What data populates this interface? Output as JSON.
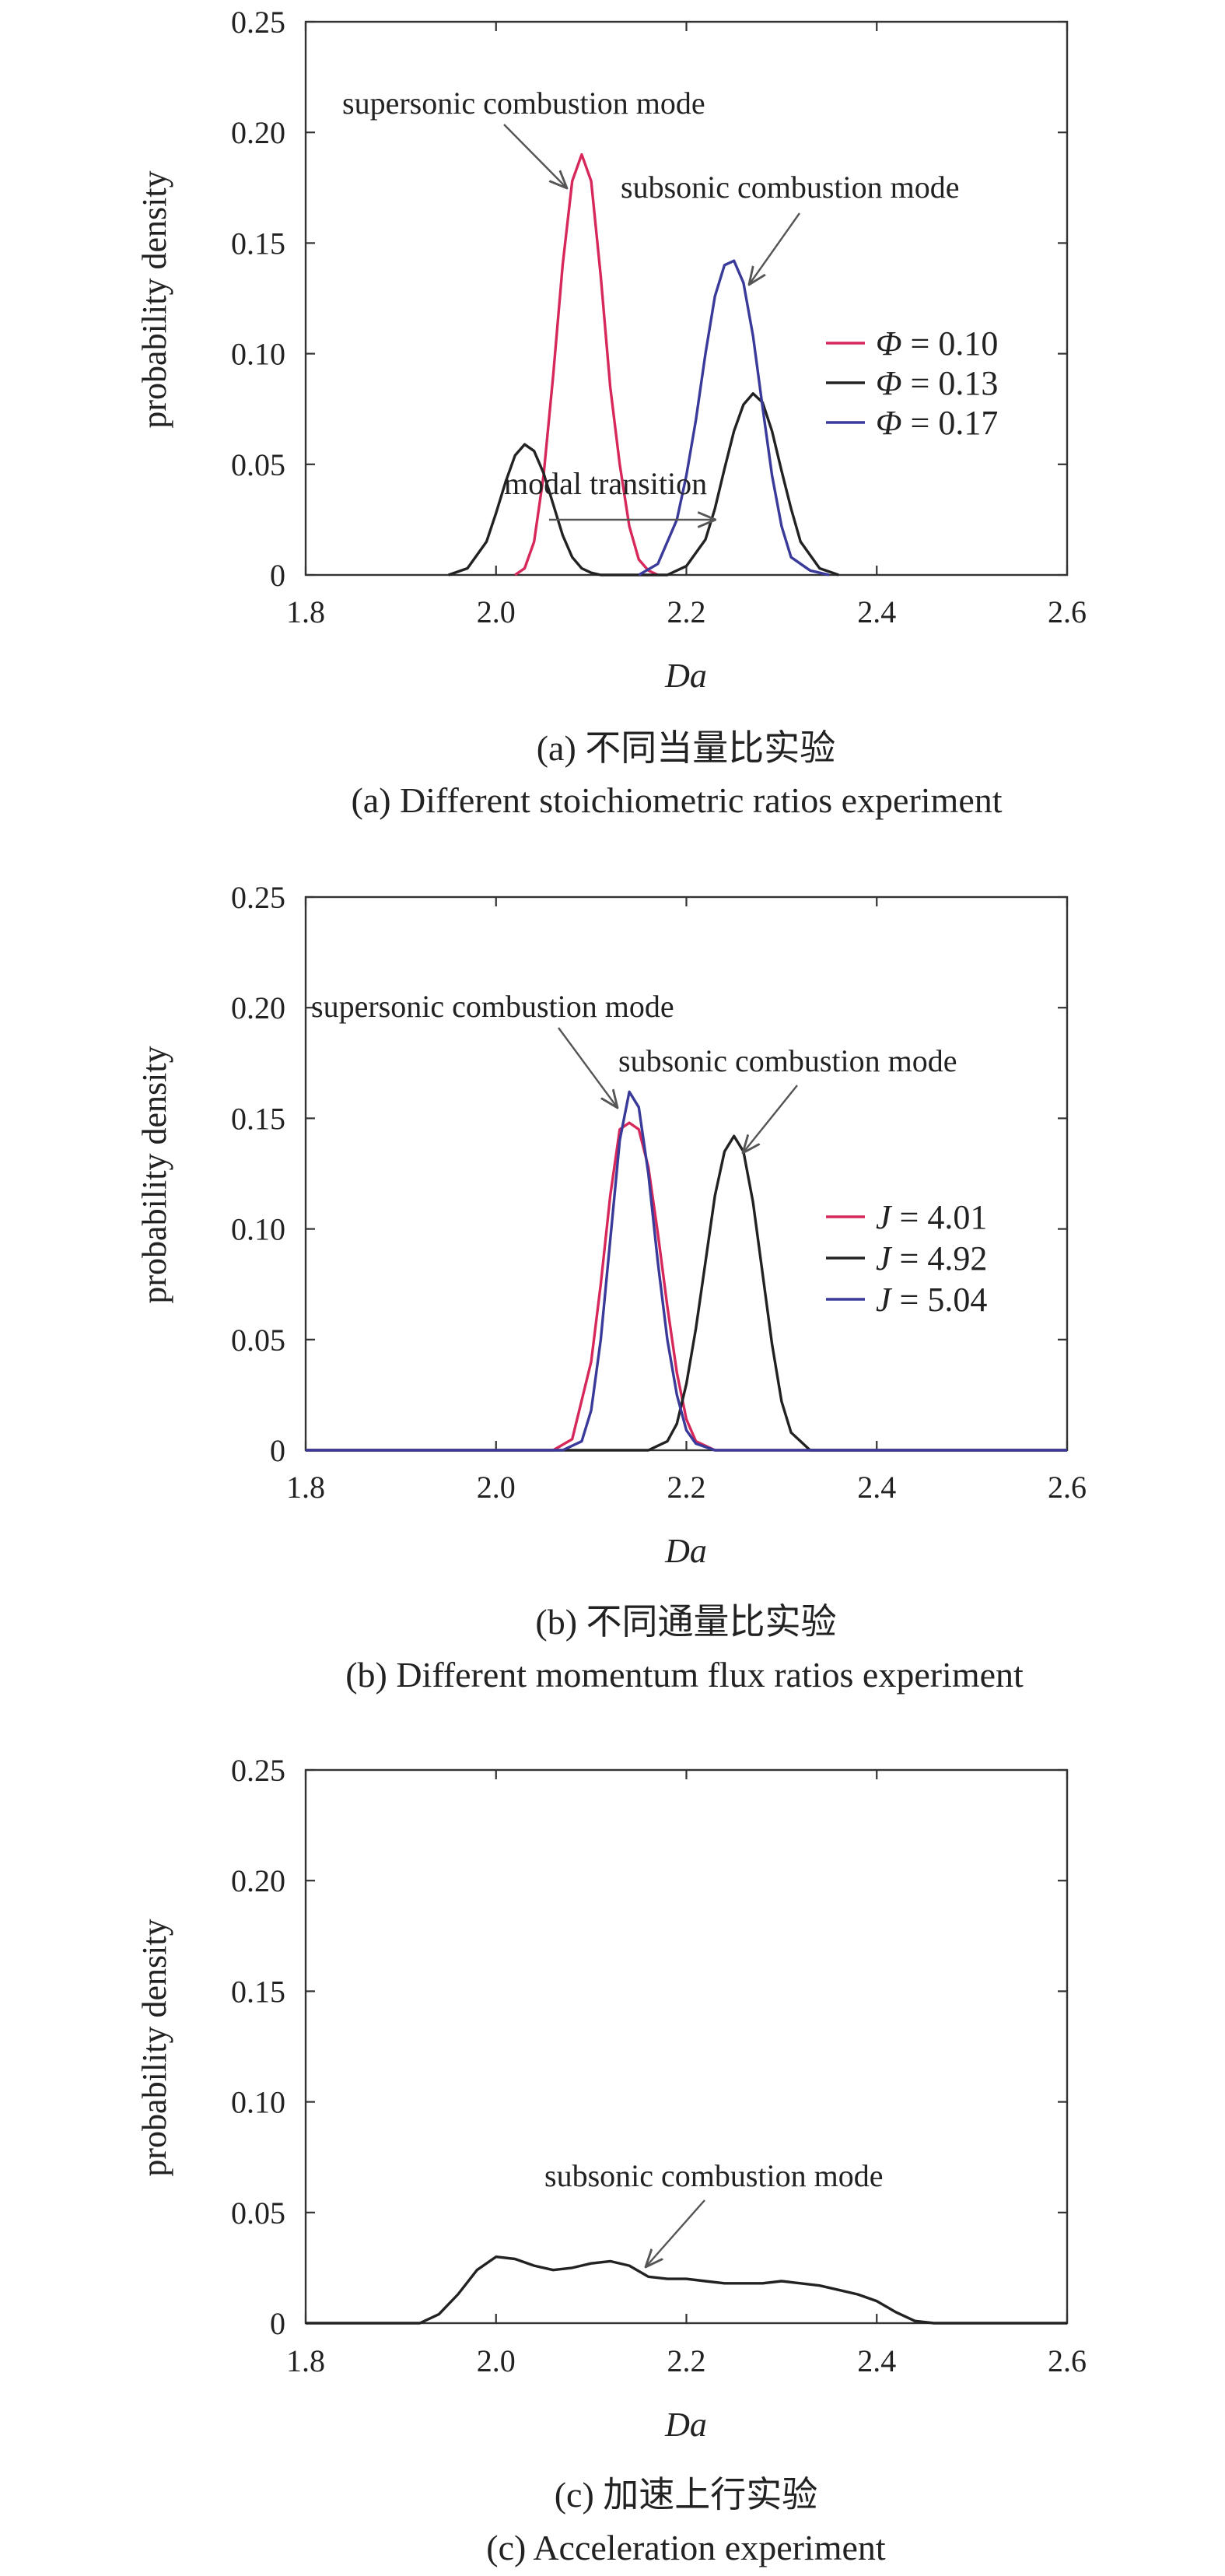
{
  "chart_data": [
    {
      "type": "line",
      "xlabel": "Da",
      "ylabel": "probability density",
      "xlim": [
        1.8,
        2.6
      ],
      "ylim": [
        0,
        0.25
      ],
      "xticks": [
        "1.8",
        "2.0",
        "2.2",
        "2.4",
        "2.6"
      ],
      "yticks": [
        "0",
        "0.05",
        "0.10",
        "0.15",
        "0.20",
        "0.25"
      ],
      "grid": false,
      "legend_position": "right",
      "caption_cn": "(a) 不同当量比实验",
      "caption_en": "(a) Different stoichiometric ratios experiment",
      "series": [
        {
          "name": "Φ = 0.10",
          "legend_symbol": "Φ",
          "legend_value": " = 0.10",
          "color": "#d6285a",
          "x": [
            2.02,
            2.03,
            2.04,
            2.05,
            2.06,
            2.07,
            2.08,
            2.09,
            2.1,
            2.11,
            2.12,
            2.13,
            2.14,
            2.15,
            2.16,
            2.17
          ],
          "y": [
            0.0,
            0.003,
            0.015,
            0.045,
            0.09,
            0.14,
            0.178,
            0.19,
            0.178,
            0.135,
            0.085,
            0.05,
            0.022,
            0.007,
            0.002,
            0.0
          ]
        },
        {
          "name": "Φ = 0.13",
          "legend_symbol": "Φ",
          "legend_value": " = 0.13",
          "color": "#222222",
          "x": [
            1.95,
            1.97,
            1.99,
            2.0,
            2.01,
            2.02,
            2.03,
            2.04,
            2.05,
            2.06,
            2.07,
            2.08,
            2.09,
            2.1,
            2.11,
            2.18,
            2.2,
            2.22,
            2.23,
            2.24,
            2.25,
            2.26,
            2.27,
            2.28,
            2.29,
            2.3,
            2.31,
            2.32,
            2.34,
            2.36
          ],
          "y": [
            0.0,
            0.003,
            0.015,
            0.028,
            0.042,
            0.054,
            0.059,
            0.056,
            0.046,
            0.032,
            0.018,
            0.008,
            0.003,
            0.001,
            0.0,
            0.0,
            0.004,
            0.016,
            0.03,
            0.048,
            0.065,
            0.077,
            0.082,
            0.078,
            0.065,
            0.047,
            0.03,
            0.015,
            0.003,
            0.0
          ]
        },
        {
          "name": "Φ = 0.17",
          "legend_symbol": "Φ",
          "legend_value": " = 0.17",
          "color": "#3a3a9a",
          "x": [
            2.15,
            2.17,
            2.19,
            2.2,
            2.21,
            2.22,
            2.23,
            2.24,
            2.25,
            2.26,
            2.27,
            2.28,
            2.29,
            2.3,
            2.31,
            2.33,
            2.35
          ],
          "y": [
            0.0,
            0.005,
            0.025,
            0.045,
            0.07,
            0.1,
            0.126,
            0.14,
            0.142,
            0.132,
            0.108,
            0.076,
            0.045,
            0.022,
            0.008,
            0.002,
            0.0
          ]
        }
      ],
      "annotations": [
        {
          "text": "supersonic combustion mode",
          "arrow_to": [
            2.09,
            0.19
          ]
        },
        {
          "text": "subsonic combustion mode",
          "arrow_to": [
            2.26,
            0.142
          ]
        },
        {
          "text": "modal transition",
          "arrow_from": [
            2.03,
            0.025
          ],
          "arrow_to": [
            2.26,
            0.025
          ]
        }
      ]
    },
    {
      "type": "line",
      "xlabel": "Da",
      "ylabel": "probability density",
      "xlim": [
        1.8,
        2.6
      ],
      "ylim": [
        0,
        0.25
      ],
      "xticks": [
        "1.8",
        "2.0",
        "2.2",
        "2.4",
        "2.6"
      ],
      "yticks": [
        "0",
        "0.05",
        "0.10",
        "0.15",
        "0.20",
        "0.25"
      ],
      "grid": false,
      "legend_position": "right",
      "caption_cn": "(b) 不同通量比实验",
      "caption_en": "(b) Different momentum flux ratios experiment",
      "series": [
        {
          "name": "J = 4.01",
          "legend_symbol": "J",
          "legend_value": " = 4.01",
          "color": "#d6285a",
          "x": [
            1.8,
            2.06,
            2.08,
            2.1,
            2.11,
            2.12,
            2.13,
            2.14,
            2.15,
            2.16,
            2.17,
            2.18,
            2.19,
            2.2,
            2.21,
            2.23,
            2.6
          ],
          "y": [
            0.0,
            0.0,
            0.005,
            0.04,
            0.075,
            0.115,
            0.145,
            0.148,
            0.145,
            0.128,
            0.098,
            0.065,
            0.035,
            0.014,
            0.004,
            0.0,
            0.0
          ]
        },
        {
          "name": "J = 4.92",
          "legend_symbol": "J",
          "legend_value": " = 4.92",
          "color": "#222222",
          "x": [
            1.8,
            2.16,
            2.18,
            2.19,
            2.2,
            2.21,
            2.22,
            2.23,
            2.24,
            2.25,
            2.26,
            2.27,
            2.28,
            2.29,
            2.3,
            2.31,
            2.33,
            2.6
          ],
          "y": [
            0.0,
            0.0,
            0.004,
            0.012,
            0.03,
            0.055,
            0.085,
            0.115,
            0.135,
            0.142,
            0.135,
            0.112,
            0.08,
            0.048,
            0.022,
            0.008,
            0.0,
            0.0
          ]
        },
        {
          "name": "J = 5.04",
          "legend_symbol": "J",
          "legend_value": " = 5.04",
          "color": "#3a3a9a",
          "x": [
            1.8,
            2.07,
            2.09,
            2.1,
            2.11,
            2.12,
            2.13,
            2.14,
            2.15,
            2.16,
            2.17,
            2.18,
            2.19,
            2.2,
            2.21,
            2.23,
            2.6
          ],
          "y": [
            0.0,
            0.0,
            0.004,
            0.018,
            0.05,
            0.095,
            0.14,
            0.162,
            0.155,
            0.125,
            0.085,
            0.05,
            0.025,
            0.009,
            0.003,
            0.0,
            0.0
          ]
        }
      ],
      "annotations": [
        {
          "text": "supersonic combustion mode",
          "arrow_to": [
            2.135,
            0.143
          ]
        },
        {
          "text": "subsonic combustion mode",
          "arrow_to": [
            2.255,
            0.142
          ]
        }
      ]
    },
    {
      "type": "line",
      "xlabel": "Da",
      "ylabel": "probability density",
      "xlim": [
        1.8,
        2.6
      ],
      "ylim": [
        0,
        0.25
      ],
      "xticks": [
        "1.8",
        "2.0",
        "2.2",
        "2.4",
        "2.6"
      ],
      "yticks": [
        "0",
        "0.05",
        "0.10",
        "0.15",
        "0.20",
        "0.25"
      ],
      "grid": false,
      "caption_cn": "(c) 加速上行实验",
      "caption_en": "(c) Acceleration experiment",
      "series": [
        {
          "color": "#222222",
          "x": [
            1.8,
            1.92,
            1.94,
            1.96,
            1.98,
            2.0,
            2.02,
            2.04,
            2.06,
            2.08,
            2.1,
            2.12,
            2.14,
            2.16,
            2.18,
            2.2,
            2.22,
            2.24,
            2.26,
            2.28,
            2.3,
            2.32,
            2.34,
            2.36,
            2.38,
            2.4,
            2.42,
            2.44,
            2.46,
            2.48,
            2.6
          ],
          "y": [
            0.0,
            0.0,
            0.004,
            0.013,
            0.024,
            0.03,
            0.029,
            0.026,
            0.024,
            0.025,
            0.027,
            0.028,
            0.026,
            0.021,
            0.02,
            0.02,
            0.019,
            0.018,
            0.018,
            0.018,
            0.019,
            0.018,
            0.017,
            0.015,
            0.013,
            0.01,
            0.005,
            0.001,
            0.0,
            0.0,
            0.0
          ]
        }
      ],
      "annotations": [
        {
          "text": "subsonic combustion mode",
          "arrow_to": [
            2.16,
            0.025
          ]
        }
      ]
    }
  ]
}
